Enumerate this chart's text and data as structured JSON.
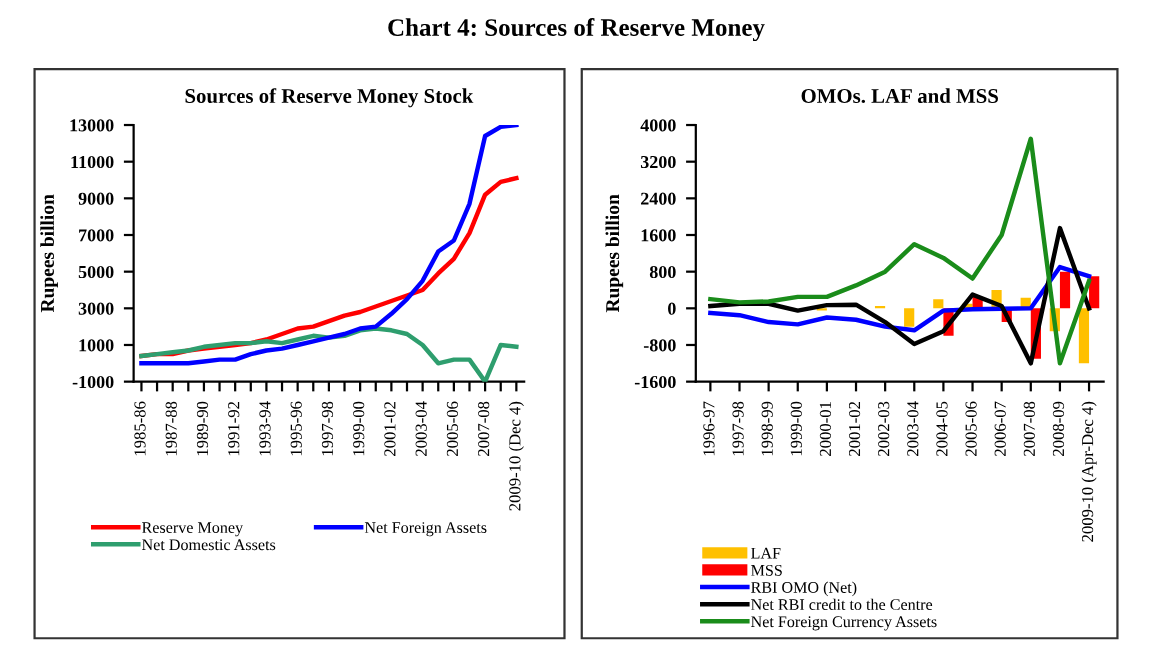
{
  "chart_data": [
    {
      "type": "line",
      "title": "Sources of Reserve Money Stock",
      "ylabel": "Rupees billion",
      "annotations": [
        "Chart 4: Sources of Reserve Money"
      ],
      "categories": [
        "1985-86",
        null,
        "1987-88",
        null,
        "1989-90",
        null,
        "1991-92",
        null,
        "1993-94",
        null,
        "1995-96",
        null,
        "1997-98",
        null,
        "1999-00",
        null,
        "2001-02",
        null,
        "2003-04",
        null,
        "2005-06",
        null,
        "2007-08",
        null,
        "2009-10 (Dec 4)"
      ],
      "series": [
        {
          "name": "Reserve Money",
          "color": "#ff0000",
          "values": [
            400,
            500,
            500,
            700,
            800,
            900,
            1000,
            1100,
            1300,
            1600,
            1900,
            2000,
            2300,
            2600,
            2800,
            3100,
            3400,
            3700,
            4000,
            4900,
            5700,
            7100,
            9200,
            9900,
            10100
          ]
        },
        {
          "name": "Net Domestic Assets",
          "color": "#2e9e6e",
          "values": [
            400,
            500,
            600,
            700,
            900,
            1000,
            1100,
            1100,
            1200,
            1100,
            1300,
            1500,
            1400,
            1500,
            1800,
            1900,
            1800,
            1600,
            1000,
            0,
            200,
            200,
            -1000,
            1000,
            900
          ]
        },
        {
          "name": "Net Foreign Assets",
          "color": "#0000ff",
          "values": [
            0,
            0,
            0,
            0,
            100,
            200,
            200,
            500,
            700,
            800,
            1000,
            1200,
            1400,
            1600,
            1900,
            2000,
            2700,
            3500,
            4500,
            6100,
            6700,
            8700,
            12400,
            12900,
            13000
          ]
        }
      ],
      "ylim": [
        -1000,
        13000
      ],
      "yticks": [
        -1000,
        1000,
        3000,
        5000,
        7000,
        9000,
        11000,
        13000
      ],
      "grid": false,
      "legend": "bottom"
    },
    {
      "type": "bar",
      "title": "OMOs. LAF and MSS",
      "ylabel": "Rupees billion",
      "categories": [
        "1996-97",
        "1997-98",
        "1998-99",
        "1999-00",
        "2000-01",
        "2001-02",
        "2002-03",
        "2003-04",
        "2004-05",
        "2005-06",
        "2006-07",
        "2007-08",
        "2008-09",
        "2009-10 (Apr-Dec 4)"
      ],
      "series": [
        {
          "name": "LAF",
          "type": "bar",
          "color": "#ffc000",
          "values": [
            null,
            null,
            null,
            null,
            -50,
            null,
            50,
            -400,
            200,
            100,
            400,
            230,
            -500,
            -1200
          ]
        },
        {
          "name": "MSS",
          "type": "bar",
          "color": "#ff0000",
          "values": [
            null,
            null,
            null,
            null,
            null,
            null,
            null,
            null,
            -600,
            250,
            -300,
            -1100,
            800,
            700
          ]
        },
        {
          "name": "RBI OMO (Net)",
          "type": "line",
          "color": "#0000ff",
          "values": [
            -100,
            -150,
            -300,
            -350,
            -200,
            -250,
            -400,
            -480,
            -50,
            -20,
            -10,
            0,
            900,
            700
          ]
        },
        {
          "name": "Net RBI credit to the Centre",
          "type": "line",
          "color": "#000000",
          "values": [
            50,
            100,
            100,
            -50,
            70,
            80,
            -300,
            -780,
            -500,
            300,
            50,
            -1200,
            1750,
            0
          ]
        },
        {
          "name": "Net Foreign Currency Assets",
          "type": "line",
          "color": "#1a8c1a",
          "values": [
            200,
            130,
            150,
            250,
            250,
            500,
            800,
            1400,
            1100,
            650,
            1600,
            3700,
            -1200,
            600
          ]
        }
      ],
      "ylim": [
        -1600,
        4000
      ],
      "yticks": [
        -1600,
        -800,
        0,
        800,
        1600,
        2400,
        3200,
        4000
      ],
      "grid": false,
      "legend": "bottom"
    }
  ]
}
